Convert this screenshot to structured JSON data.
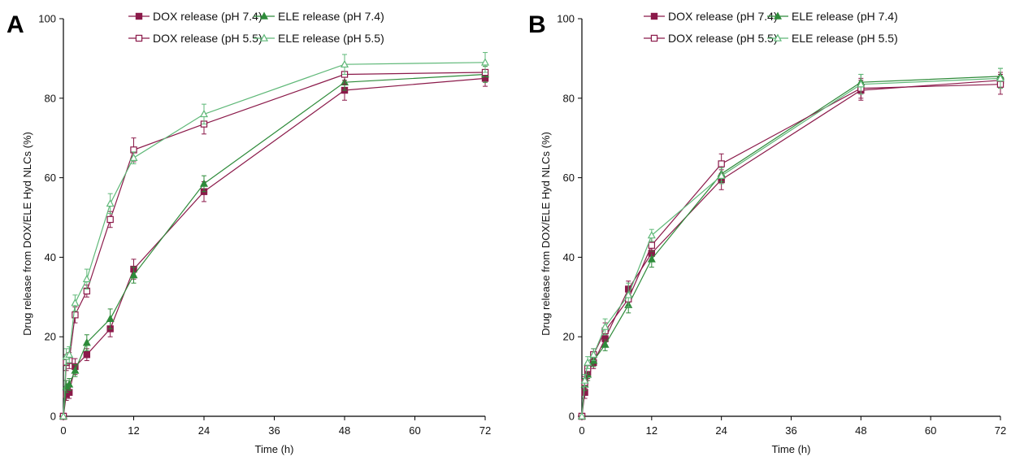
{
  "chart_data": [
    {
      "type": "line",
      "panel": "A",
      "xlabel": "Time (h)",
      "ylabel": "Drug release from DOX/ELE Hyd NLCs (%)",
      "xlim": [
        0,
        72
      ],
      "ylim": [
        0,
        100
      ],
      "xticks": [
        0,
        12,
        24,
        36,
        48,
        60,
        72
      ],
      "yticks": [
        0,
        20,
        40,
        60,
        80,
        100
      ],
      "grid": false,
      "legend_position": "top",
      "x": [
        0,
        0.5,
        1,
        2,
        4,
        8,
        12,
        24,
        48,
        72
      ],
      "series": [
        {
          "name": "DOX release (pH 7.4)",
          "color": "#8b1a4a",
          "marker": "square-filled",
          "values": [
            0,
            5.5,
            6,
            12.5,
            15.5,
            22,
            37,
            56.5,
            82,
            85
          ],
          "errors": [
            0,
            1.5,
            1.5,
            2,
            1.5,
            2,
            2.5,
            2.5,
            2.5,
            2
          ]
        },
        {
          "name": "ELE release (pH 7.4)",
          "color": "#2e8b3a",
          "marker": "triangle-filled",
          "values": [
            0,
            7.5,
            8,
            11.5,
            18.5,
            24.5,
            35.5,
            58.5,
            84,
            86
          ],
          "errors": [
            0,
            1.5,
            1.5,
            1.5,
            2,
            2.5,
            2,
            2,
            2,
            2
          ]
        },
        {
          "name": "DOX release (pH 5.5)",
          "color": "#8b1a4a",
          "marker": "square-open",
          "values": [
            0,
            13.5,
            14,
            25.5,
            31.5,
            49.5,
            67,
            73.5,
            86,
            86.5
          ],
          "errors": [
            0,
            2,
            2,
            2,
            1.5,
            2,
            3,
            2.5,
            2.5,
            2
          ]
        },
        {
          "name": "ELE release (pH 5.5)",
          "color": "#5fb878",
          "marker": "triangle-open",
          "values": [
            0,
            15,
            15.5,
            28.5,
            34.5,
            53.5,
            65,
            76,
            88.5,
            89
          ],
          "errors": [
            0,
            2,
            2,
            2,
            2.5,
            2.5,
            1.5,
            2.5,
            2.5,
            2.5
          ]
        }
      ]
    },
    {
      "type": "line",
      "panel": "B",
      "xlabel": "Time (h)",
      "ylabel": "Drug release from DOX/ELE Hyd NLCs (%)",
      "xlim": [
        0,
        72
      ],
      "ylim": [
        0,
        100
      ],
      "xticks": [
        0,
        12,
        24,
        36,
        48,
        60,
        72
      ],
      "yticks": [
        0,
        20,
        40,
        60,
        80,
        100
      ],
      "grid": false,
      "legend_position": "top",
      "x": [
        0,
        0.5,
        1,
        2,
        4,
        8,
        12,
        24,
        48,
        72
      ],
      "series": [
        {
          "name": "DOX release (pH 7.4)",
          "color": "#8b1a4a",
          "marker": "square-filled",
          "values": [
            0,
            6,
            11,
            13.5,
            19.5,
            32,
            41,
            59.5,
            82,
            84.5
          ],
          "errors": [
            0,
            1.5,
            1.5,
            1.5,
            1.5,
            2,
            2,
            2.5,
            2.5,
            2
          ]
        },
        {
          "name": "ELE release (pH 7.4)",
          "color": "#2e8b3a",
          "marker": "triangle-filled",
          "values": [
            0,
            8,
            10.5,
            14,
            18,
            28,
            39.5,
            61,
            84,
            85.5
          ],
          "errors": [
            0,
            1.5,
            1.5,
            1.5,
            1.5,
            2,
            2,
            2,
            2,
            2
          ]
        },
        {
          "name": "DOX release (pH 5.5)",
          "color": "#8b1a4a",
          "marker": "square-open",
          "values": [
            0,
            8.5,
            12,
            15.5,
            21.5,
            29.5,
            43,
            63.5,
            82.5,
            83.5
          ],
          "errors": [
            0,
            1.5,
            1.5,
            1.5,
            2,
            2,
            2,
            2.5,
            2.5,
            2.5
          ]
        },
        {
          "name": "ELE release (pH 5.5)",
          "color": "#5fb878",
          "marker": "triangle-open",
          "values": [
            0,
            9,
            13.5,
            15.5,
            22.5,
            30.5,
            45.5,
            60.5,
            83.5,
            85
          ],
          "errors": [
            0,
            1.5,
            1.5,
            1.5,
            2,
            3,
            1.5,
            2,
            2.5,
            2.5
          ]
        }
      ]
    }
  ]
}
